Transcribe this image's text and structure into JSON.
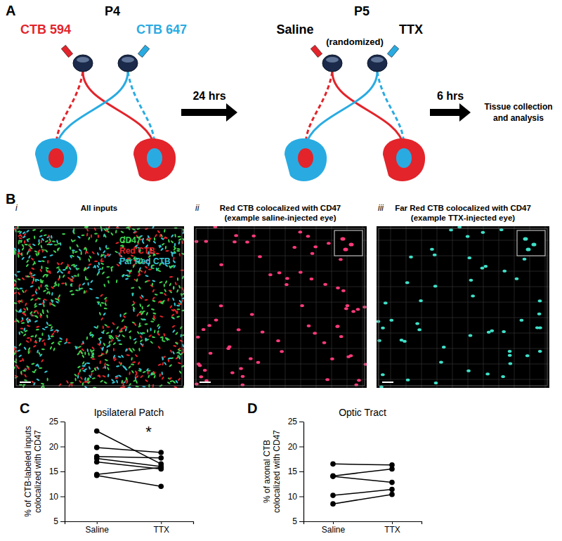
{
  "figure": {
    "panel_labels": [
      "A",
      "B",
      "C",
      "D"
    ],
    "diagram": {
      "stages": [
        {
          "time": "P4",
          "labels": [
            "CTB 594",
            "CTB 647"
          ]
        },
        {
          "time": "P5",
          "labels": [
            "Saline",
            "TTX"
          ],
          "note": "(randomized)"
        }
      ],
      "steps": [
        "24 hrs",
        "6 hrs"
      ],
      "end": [
        "Tissue collection",
        "and analysis"
      ]
    },
    "images": [
      {
        "numeral": "i",
        "title": [
          "All inputs"
        ],
        "legend": [
          "CD47",
          "Red CTB",
          "Far Red CTB"
        ]
      },
      {
        "numeral": "ii",
        "title": [
          "Red CTB colocalized with CD47",
          "(example saline-injected eye)"
        ]
      },
      {
        "numeral": "iii",
        "title": [
          "Far Red CTB colocalized with CD47",
          "(example TTX-injected eye)"
        ]
      }
    ]
  },
  "chart_data": [
    {
      "type": "line",
      "title": "Ipsilateral Patch",
      "y_label": [
        "% of CTB-labeled inputs",
        "colocalized with CD47"
      ],
      "categories": [
        "Saline",
        "TTX"
      ],
      "ylim": [
        5,
        25
      ],
      "yticks": [
        5,
        10,
        15,
        20,
        25
      ],
      "color": "#000000",
      "marker": "circle",
      "series": [
        {
          "values": [
            23.1,
            16.5
          ]
        },
        {
          "values": [
            19.8,
            18.8
          ]
        },
        {
          "values": [
            18.0,
            17.7
          ]
        },
        {
          "values": [
            17.6,
            16.0
          ]
        },
        {
          "values": [
            16.9,
            15.5
          ]
        },
        {
          "values": [
            14.4,
            15.8
          ]
        },
        {
          "values": [
            14.2,
            12.0
          ]
        }
      ],
      "annotations": [
        {
          "text": "*"
        }
      ]
    },
    {
      "type": "line",
      "title": "Optic Tract",
      "y_label": [
        "% of axonal CTB",
        "colocalized with CD47"
      ],
      "categories": [
        "Saline",
        "TTX"
      ],
      "ylim": [
        5,
        25
      ],
      "yticks": [
        5,
        10,
        15,
        20,
        25
      ],
      "color": "#000000",
      "marker": "circle",
      "series": [
        {
          "values": [
            16.5,
            16.3
          ]
        },
        {
          "values": [
            14.1,
            15.5
          ]
        },
        {
          "values": [
            14.0,
            12.8
          ]
        },
        {
          "values": [
            10.2,
            11.4
          ]
        },
        {
          "values": [
            8.5,
            10.4
          ]
        }
      ]
    }
  ]
}
